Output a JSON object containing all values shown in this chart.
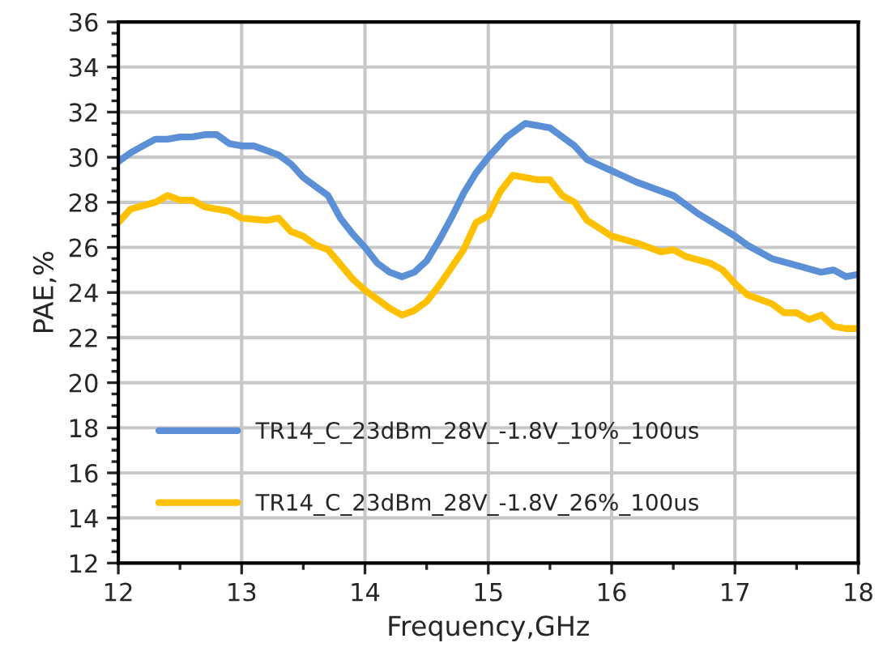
{
  "chart_data": {
    "type": "line",
    "xlabel": "Frequency,GHz",
    "ylabel": "PAE,%",
    "xlim": [
      12,
      18
    ],
    "xticks": [
      12,
      13,
      14,
      15,
      16,
      17,
      18
    ],
    "ylim": [
      12,
      36
    ],
    "yticks": [
      12,
      14,
      16,
      18,
      20,
      22,
      24,
      26,
      28,
      30,
      32,
      34,
      36
    ],
    "grid": true,
    "legend": "bottom",
    "marker": "none",
    "line_style": "solid",
    "series": [
      {
        "name": "TR14_C_23dBm_28V_-1.8V_10%_100us",
        "color": "#5b8fd6",
        "x": [
          12.0,
          12.1,
          12.2,
          12.3,
          12.4,
          12.5,
          12.6,
          12.7,
          12.8,
          12.9,
          13.0,
          13.1,
          13.2,
          13.3,
          13.4,
          13.5,
          13.6,
          13.7,
          13.8,
          13.9,
          14.0,
          14.1,
          14.2,
          14.3,
          14.4,
          14.5,
          14.6,
          14.7,
          14.8,
          14.9,
          15.0,
          15.15,
          15.3,
          15.5,
          15.7,
          15.8,
          16.0,
          16.2,
          16.5,
          16.7,
          17.0,
          17.1,
          17.3,
          17.5,
          17.7,
          17.8,
          17.9,
          18.0
        ],
        "values": [
          29.8,
          30.2,
          30.5,
          30.8,
          30.8,
          30.9,
          30.9,
          31.0,
          31.0,
          30.6,
          30.5,
          30.5,
          30.3,
          30.1,
          29.7,
          29.1,
          28.7,
          28.3,
          27.3,
          26.6,
          26.0,
          25.3,
          24.9,
          24.7,
          24.9,
          25.4,
          26.3,
          27.3,
          28.4,
          29.3,
          30.0,
          30.9,
          31.5,
          31.3,
          30.5,
          29.9,
          29.4,
          28.9,
          28.3,
          27.5,
          26.5,
          26.1,
          25.5,
          25.2,
          24.9,
          25.0,
          24.7,
          24.8
        ]
      },
      {
        "name": "TR14_C_23dBm_28V_-1.8V_26%_100us",
        "color": "#ffc000",
        "x": [
          12.0,
          12.1,
          12.3,
          12.4,
          12.5,
          12.6,
          12.7,
          12.9,
          13.0,
          13.2,
          13.3,
          13.4,
          13.5,
          13.6,
          13.7,
          13.9,
          14.0,
          14.2,
          14.3,
          14.4,
          14.5,
          14.6,
          14.7,
          14.8,
          14.9,
          15.0,
          15.1,
          15.2,
          15.4,
          15.5,
          15.6,
          15.7,
          15.8,
          16.0,
          16.2,
          16.4,
          16.5,
          16.6,
          16.8,
          16.9,
          17.0,
          17.1,
          17.3,
          17.4,
          17.5,
          17.6,
          17.7,
          17.8,
          17.9,
          18.0
        ],
        "values": [
          27.1,
          27.7,
          28.0,
          28.3,
          28.1,
          28.1,
          27.8,
          27.6,
          27.3,
          27.2,
          27.3,
          26.7,
          26.5,
          26.1,
          25.9,
          24.6,
          24.1,
          23.3,
          23.0,
          23.2,
          23.6,
          24.3,
          25.1,
          25.9,
          27.1,
          27.4,
          28.5,
          29.2,
          29.0,
          29.0,
          28.3,
          28.0,
          27.2,
          26.5,
          26.2,
          25.8,
          25.9,
          25.6,
          25.3,
          25.0,
          24.4,
          23.9,
          23.5,
          23.1,
          23.1,
          22.8,
          23.0,
          22.5,
          22.4,
          22.4
        ]
      }
    ]
  }
}
